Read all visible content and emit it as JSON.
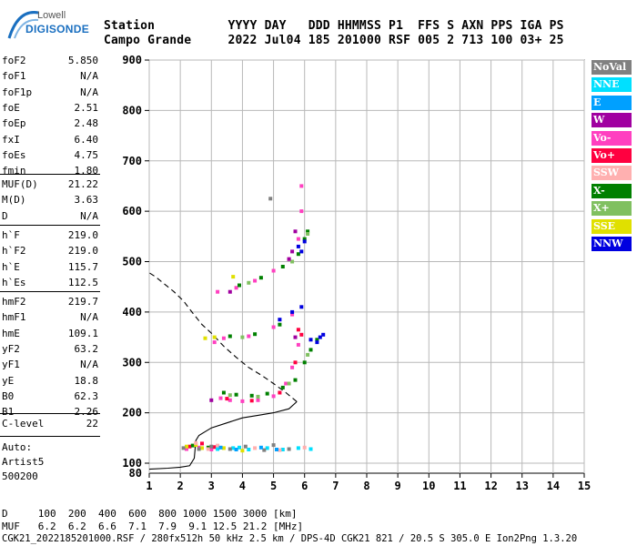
{
  "header": {
    "logo_line1": "Lowell",
    "logo_line2": "DIGISONDE",
    "labels_line": "Station          YYYY DAY   DDD HHMMSS P1  FFS S AXN PPS IGA PS",
    "values_line": "Campo Grande     2022 Jul04 185 201000 RSF 005 2 713 100 03+ 25"
  },
  "params": {
    "group1": [
      {
        "label": "foF2",
        "value": "5.850"
      },
      {
        "label": "foF1",
        "value": "N/A"
      },
      {
        "label": "foF1p",
        "value": "N/A"
      },
      {
        "label": "foE",
        "value": "2.51"
      },
      {
        "label": "foEp",
        "value": "2.48"
      },
      {
        "label": "fxI",
        "value": "6.40"
      },
      {
        "label": "foEs",
        "value": "4.75"
      },
      {
        "label": "fmin",
        "value": "1.80"
      }
    ],
    "group2": [
      {
        "label": "MUF(D)",
        "value": "21.22"
      },
      {
        "label": "M(D)",
        "value": "3.63"
      },
      {
        "label": "D",
        "value": "N/A"
      }
    ],
    "group3": [
      {
        "label": "h`F",
        "value": "219.0"
      },
      {
        "label": "h`F2",
        "value": "219.0"
      },
      {
        "label": "h`E",
        "value": "115.7"
      },
      {
        "label": "h`Es",
        "value": "112.5"
      }
    ],
    "group4": [
      {
        "label": "hmF2",
        "value": "219.7"
      },
      {
        "label": "hmF1",
        "value": "N/A"
      },
      {
        "label": "hmE",
        "value": "109.1"
      },
      {
        "label": "yF2",
        "value": "63.2"
      },
      {
        "label": "yF1",
        "value": "N/A"
      },
      {
        "label": "yE",
        "value": "18.8"
      },
      {
        "label": "B0",
        "value": "62.3"
      },
      {
        "label": "B1",
        "value": "2.26"
      }
    ],
    "group5": [
      {
        "label": "C-level",
        "value": "22"
      }
    ],
    "autoscaling": [
      "Auto:",
      "Artist5",
      "500200"
    ]
  },
  "legend": [
    {
      "label": "NoVal",
      "color": "#808080"
    },
    {
      "label": "NNE",
      "color": "#00e0ff"
    },
    {
      "label": "E",
      "color": "#00a0ff"
    },
    {
      "label": "W",
      "color": "#a000a0"
    },
    {
      "label": "Vo-",
      "color": "#ff40c0"
    },
    {
      "label": "Vo+",
      "color": "#ff0040"
    },
    {
      "label": "SSW",
      "color": "#ffb0b0"
    },
    {
      "label": "X-",
      "color": "#008000"
    },
    {
      "label": "X+",
      "color": "#80c060"
    },
    {
      "label": "SSE",
      "color": "#e0e000"
    },
    {
      "label": "NNW",
      "color": "#0000e0"
    }
  ],
  "footer": {
    "d_line": "D     100  200  400  600  800 1000 1500 3000 [km]",
    "muf_line": "MUF   6.2  6.2  6.6  7.1  7.9  9.1 12.5 21.2 [MHz]",
    "file_line": "CGK21_2022185201000.RSF / 280fx512h 50 kHz 2.5 km / DPS-4D CGK21 821 / 20.5 S 305.0 E Ion2Png 1.3.20"
  },
  "chart_data": {
    "type": "scatter",
    "xlabel": "",
    "ylabel": "",
    "xlim": [
      1,
      15
    ],
    "ylim": [
      80,
      900
    ],
    "x_ticks": [
      1,
      2,
      3,
      4,
      5,
      6,
      7,
      8,
      9,
      10,
      11,
      12,
      13,
      14,
      15
    ],
    "y_ticks": [
      100,
      200,
      300,
      400,
      500,
      600,
      700,
      800,
      900
    ],
    "y_extra_label": 80,
    "grid": true,
    "legend_position": "right",
    "series": [
      {
        "name": "Vo-",
        "color": "#ff40c0",
        "points": [
          [
            2.2,
            128
          ],
          [
            2.6,
            131
          ],
          [
            3.0,
            127
          ],
          [
            3.3,
            229
          ],
          [
            3.6,
            225
          ],
          [
            4.0,
            223
          ],
          [
            4.5,
            225
          ],
          [
            5.0,
            233
          ],
          [
            5.4,
            258
          ],
          [
            5.6,
            290
          ],
          [
            5.8,
            335
          ],
          [
            3.2,
            440
          ],
          [
            3.8,
            448
          ],
          [
            4.4,
            462
          ],
          [
            5.0,
            482
          ],
          [
            5.5,
            505
          ],
          [
            5.8,
            545
          ],
          [
            5.9,
            600
          ],
          [
            5.9,
            650
          ],
          [
            3.4,
            348
          ],
          [
            4.2,
            352
          ],
          [
            5.0,
            370
          ],
          [
            5.6,
            395
          ],
          [
            3.1,
            340
          ]
        ]
      },
      {
        "name": "Vo+",
        "color": "#ff0040",
        "points": [
          [
            2.3,
            133
          ],
          [
            2.7,
            139
          ],
          [
            3.1,
            132
          ],
          [
            3.5,
            228
          ],
          [
            4.3,
            224
          ],
          [
            5.2,
            240
          ],
          [
            5.7,
            300
          ],
          [
            5.9,
            355
          ],
          [
            5.8,
            365
          ]
        ]
      },
      {
        "name": "X-",
        "color": "#008000",
        "points": [
          [
            3.4,
            240
          ],
          [
            3.8,
            236
          ],
          [
            4.3,
            234
          ],
          [
            4.8,
            238
          ],
          [
            5.3,
            250
          ],
          [
            5.7,
            265
          ],
          [
            6.0,
            300
          ],
          [
            6.2,
            325
          ],
          [
            6.4,
            345
          ],
          [
            3.9,
            453
          ],
          [
            4.6,
            468
          ],
          [
            5.3,
            490
          ],
          [
            5.8,
            515
          ],
          [
            6.0,
            545
          ],
          [
            6.1,
            560
          ],
          [
            3.6,
            352
          ],
          [
            4.4,
            356
          ],
          [
            5.2,
            375
          ],
          [
            2.4,
            135
          ],
          [
            2.9,
            131
          ]
        ]
      },
      {
        "name": "X+",
        "color": "#80c060",
        "points": [
          [
            3.6,
            235
          ],
          [
            4.5,
            232
          ],
          [
            5.5,
            258
          ],
          [
            6.1,
            315
          ],
          [
            4.2,
            458
          ],
          [
            5.6,
            500
          ],
          [
            6.1,
            555
          ],
          [
            4.0,
            350
          ]
        ]
      },
      {
        "name": "NNW",
        "color": "#0000e0",
        "points": [
          [
            5.9,
            520
          ],
          [
            6.0,
            540
          ],
          [
            5.8,
            530
          ],
          [
            6.2,
            345
          ],
          [
            6.4,
            340
          ],
          [
            6.5,
            350
          ],
          [
            6.6,
            355
          ],
          [
            5.2,
            385
          ],
          [
            5.6,
            400
          ],
          [
            5.9,
            410
          ]
        ]
      },
      {
        "name": "NNE",
        "color": "#00e0ff",
        "points": [
          [
            3.2,
            128
          ],
          [
            3.7,
            130
          ],
          [
            4.2,
            127
          ],
          [
            4.8,
            130
          ],
          [
            5.3,
            127
          ],
          [
            5.8,
            130
          ],
          [
            6.2,
            128
          ],
          [
            3.9,
            131
          ]
        ]
      },
      {
        "name": "SSE",
        "color": "#e0e000",
        "points": [
          [
            2.2,
            133
          ],
          [
            2.5,
            136
          ],
          [
            3.4,
            130
          ],
          [
            4.0,
            125
          ],
          [
            2.8,
            348
          ],
          [
            3.1,
            350
          ],
          [
            3.7,
            470
          ],
          [
            2.7,
            130
          ]
        ]
      },
      {
        "name": "W",
        "color": "#a000a0",
        "points": [
          [
            5.6,
            520
          ],
          [
            5.5,
            505
          ],
          [
            5.7,
            560
          ],
          [
            3.0,
            225
          ],
          [
            3.6,
            440
          ],
          [
            5.7,
            350
          ]
        ]
      },
      {
        "name": "SSW",
        "color": "#ffb0b0",
        "points": [
          [
            2.5,
            140
          ],
          [
            2.9,
            128
          ],
          [
            3.2,
            135
          ],
          [
            4.4,
            130
          ],
          [
            5.2,
            126
          ],
          [
            6.0,
            131
          ]
        ]
      },
      {
        "name": "NoVal",
        "color": "#808080",
        "points": [
          [
            2.1,
            130
          ],
          [
            2.6,
            128
          ],
          [
            3.0,
            133
          ],
          [
            3.6,
            128
          ],
          [
            4.1,
            133
          ],
          [
            4.7,
            126
          ],
          [
            5.0,
            136
          ],
          [
            5.5,
            128
          ],
          [
            4.9,
            625
          ]
        ]
      },
      {
        "name": "E",
        "color": "#00a0ff",
        "points": [
          [
            3.3,
            131
          ],
          [
            3.8,
            127
          ],
          [
            4.6,
            131
          ],
          [
            5.1,
            127
          ]
        ]
      }
    ],
    "profile_solid": [
      [
        1.0,
        88
      ],
      [
        1.6,
        90
      ],
      [
        2.0,
        92
      ],
      [
        2.3,
        95
      ],
      [
        2.45,
        110
      ],
      [
        2.5,
        145
      ],
      [
        2.6,
        155
      ],
      [
        3.0,
        170
      ],
      [
        3.5,
        180
      ],
      [
        4.0,
        190
      ],
      [
        4.5,
        195
      ],
      [
        5.0,
        200
      ],
      [
        5.5,
        208
      ],
      [
        5.75,
        222
      ]
    ],
    "profile_dashed": [
      [
        5.75,
        222
      ],
      [
        5.4,
        240
      ],
      [
        5.0,
        258
      ],
      [
        4.6,
        275
      ],
      [
        4.2,
        290
      ],
      [
        3.8,
        310
      ],
      [
        3.4,
        332
      ],
      [
        3.0,
        358
      ],
      [
        2.7,
        375
      ],
      [
        2.4,
        398
      ],
      [
        2.1,
        422
      ],
      [
        1.8,
        440
      ],
      [
        1.5,
        455
      ],
      [
        1.2,
        470
      ],
      [
        1.0,
        478
      ]
    ]
  }
}
